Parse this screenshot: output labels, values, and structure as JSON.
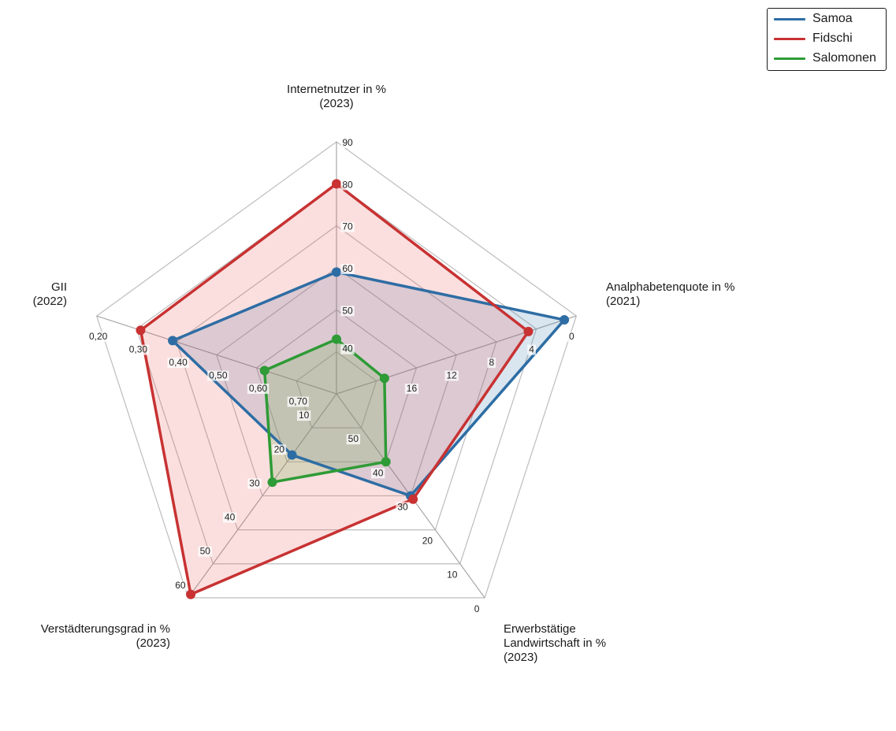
{
  "chart_data": {
    "type": "radar",
    "axes": [
      {
        "label": [
          "Internetnutzer in %",
          "(2023)"
        ],
        "ticks": [
          "90",
          "80",
          "70",
          "60",
          "50",
          "40"
        ],
        "range": [
          30,
          90
        ]
      },
      {
        "label": [
          "Analphabetenquote in %",
          "(2021)"
        ],
        "ticks": [
          "0",
          "4",
          "8",
          "12",
          "16"
        ],
        "range": [
          20,
          0
        ]
      },
      {
        "label": [
          "Erwerbstätige",
          "Landwirtschaft in %",
          "(2023)"
        ],
        "ticks": [
          "0",
          "10",
          "20",
          "30",
          "40",
          "50"
        ],
        "range": [
          60,
          0
        ]
      },
      {
        "label": [
          "Verstädterungsgrad in %",
          "(2023)"
        ],
        "ticks": [
          "60",
          "50",
          "40",
          "30",
          "20",
          "10"
        ],
        "range": [
          0,
          60
        ]
      },
      {
        "label": [
          "GII",
          "(2022)"
        ],
        "ticks": [
          "0,20",
          "0,30",
          "0,40",
          "0,50",
          "0,60",
          "0,70"
        ],
        "range": [
          0.8,
          0.2
        ]
      }
    ],
    "series": [
      {
        "name": "Samoa",
        "color": "#2e6da4",
        "fill": "rgba(46,109,164,0.18)",
        "values": [
          59,
          1,
          30,
          18,
          0.39
        ]
      },
      {
        "name": "Fidschi",
        "color": "#c83232",
        "fill": "rgba(235,80,80,0.18)",
        "values": [
          80,
          4,
          29,
          59,
          0.31
        ]
      },
      {
        "name": "Salomonen",
        "color": "#2e9b36",
        "fill": "rgba(120,180,90,0.25)",
        "values": [
          43,
          16,
          40,
          26,
          0.62
        ]
      }
    ],
    "legend_position": "top-right",
    "grid": true
  }
}
